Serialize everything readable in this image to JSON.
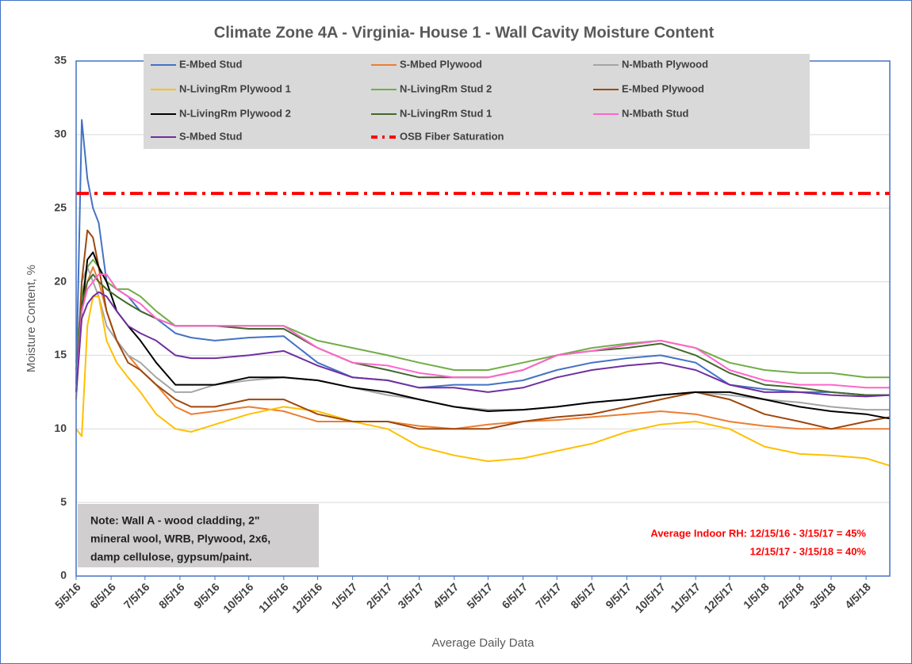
{
  "chart_data": {
    "type": "line",
    "title": "Climate Zone 4A - Virginia- House 1 - Wall Cavity Moisture Content",
    "x_label": "Average Daily Data",
    "y_label": "Moisture Content, %",
    "x": [
      "5/5/16",
      "5/10/16",
      "5/15/16",
      "5/20/16",
      "5/25/16",
      "6/1/16",
      "6/10/16",
      "6/20/16",
      "7/1/16",
      "7/15/16",
      "8/1/16",
      "8/15/16",
      "9/5/16",
      "10/5/16",
      "11/5/16",
      "12/5/16",
      "1/5/17",
      "2/5/17",
      "3/5/17",
      "4/5/17",
      "5/5/17",
      "6/5/17",
      "7/5/17",
      "8/5/17",
      "9/5/17",
      "10/5/17",
      "11/5/17",
      "12/5/17",
      "1/5/18",
      "2/5/18",
      "3/5/18",
      "4/5/18",
      "4/26/18"
    ],
    "xlim": [
      "5/5/16",
      "4/26/18"
    ],
    "xticks": [
      "5/5/16",
      "6/5/16",
      "7/5/16",
      "8/5/16",
      "9/5/16",
      "10/5/16",
      "11/5/16",
      "12/5/16",
      "1/5/17",
      "2/5/17",
      "3/5/17",
      "4/5/17",
      "5/5/17",
      "6/5/17",
      "7/5/17",
      "8/5/17",
      "9/5/17",
      "10/5/17",
      "11/5/17",
      "12/5/17",
      "1/5/18",
      "2/5/18",
      "3/5/18",
      "4/5/18"
    ],
    "ylim": [
      0,
      35
    ],
    "yticks": [
      0,
      5,
      10,
      15,
      20,
      25,
      30,
      35
    ],
    "grid": true,
    "series": [
      {
        "name": "E-Mbed Stud",
        "color": "#4472c4",
        "values": [
          13,
          31,
          27,
          25,
          24,
          20,
          19.5,
          19,
          18,
          17.5,
          16.5,
          16.2,
          16,
          16.2,
          16.3,
          14.5,
          13.5,
          13.3,
          12.8,
          13,
          13,
          13.3,
          14,
          14.5,
          14.8,
          15,
          14.5,
          13,
          12.7,
          12.5,
          12.5,
          12.3,
          12.3
        ]
      },
      {
        "name": "S-Mbed Plywood",
        "color": "#ed7d31",
        "values": [
          12,
          18,
          20,
          21,
          20,
          18,
          16,
          15,
          14,
          13,
          11.5,
          11,
          11.2,
          11.5,
          11.2,
          10.5,
          10.5,
          10.5,
          10.2,
          10,
          10.3,
          10.5,
          10.6,
          10.8,
          11,
          11.2,
          11,
          10.5,
          10.2,
          10,
          10,
          10,
          10
        ]
      },
      {
        "name": "N-Mbath Plywood",
        "color": "#a5a5a5",
        "values": [
          13,
          20,
          21,
          20,
          19,
          17,
          16,
          15,
          14.5,
          13.5,
          12.5,
          12.5,
          13,
          13.3,
          13.5,
          13.3,
          12.8,
          12.3,
          12,
          11.5,
          11.3,
          11.3,
          11.5,
          11.8,
          12,
          12.3,
          12.5,
          12.3,
          12,
          11.8,
          11.5,
          11.3,
          11.3
        ]
      },
      {
        "name": "N-LivingRm Plywood 1",
        "color": "#ffc000",
        "values": [
          10,
          9.5,
          17,
          19,
          19,
          16,
          14.5,
          13.5,
          12.5,
          11,
          10,
          9.8,
          10.3,
          11,
          11.5,
          11.2,
          10.5,
          10,
          8.8,
          8.2,
          7.8,
          8,
          8.5,
          9,
          9.8,
          10.3,
          10.5,
          10,
          8.8,
          8.3,
          8.2,
          8,
          7.5
        ]
      },
      {
        "name": "N-LivingRm Stud 2",
        "color": "#70ad47",
        "values": [
          14.5,
          19,
          21,
          21.5,
          21,
          20,
          19.5,
          19.5,
          19,
          18,
          17,
          17,
          17,
          17,
          17,
          16,
          15.5,
          15,
          14.5,
          14,
          14,
          14.5,
          15,
          15.5,
          15.8,
          16,
          15.5,
          14.5,
          14,
          13.8,
          13.8,
          13.5,
          13.5
        ]
      },
      {
        "name": "E-Mbed Plywood",
        "color": "#9e480e",
        "values": [
          12.5,
          20,
          23.5,
          23,
          21,
          18,
          16,
          14.5,
          14,
          13,
          12,
          11.5,
          11.5,
          12,
          12,
          11,
          10.5,
          10.5,
          10,
          10,
          10,
          10.5,
          10.8,
          11,
          11.5,
          12,
          12.5,
          12,
          11,
          10.5,
          10,
          10.5,
          10.8
        ]
      },
      {
        "name": "N-LivingRm Plywood 2",
        "color": "#000000",
        "values": [
          12.5,
          18,
          21.5,
          22,
          21,
          20,
          18,
          17,
          16,
          14.5,
          13,
          13,
          13,
          13.5,
          13.5,
          13.3,
          12.8,
          12.5,
          12,
          11.5,
          11.2,
          11.3,
          11.5,
          11.8,
          12,
          12.3,
          12.5,
          12.5,
          12,
          11.5,
          11.2,
          11,
          10.7
        ]
      },
      {
        "name": "N-LivingRm Stud 1",
        "color": "#43682b",
        "values": [
          14,
          18.5,
          20,
          20.5,
          20,
          19.5,
          19,
          18.5,
          18,
          17.5,
          17,
          17,
          17,
          16.8,
          16.8,
          15.5,
          14.5,
          14,
          13.5,
          13.5,
          13.5,
          14,
          15,
          15.3,
          15.5,
          15.8,
          15,
          13.8,
          13,
          12.8,
          12.5,
          12.3,
          12.3
        ]
      },
      {
        "name": "N-Mbath Stud",
        "color": "#ff66cc",
        "values": [
          13,
          18,
          19.5,
          20,
          20.5,
          20.5,
          19.5,
          19,
          18.5,
          17.5,
          17,
          17,
          17,
          17,
          17,
          15.5,
          14.5,
          14.3,
          13.8,
          13.5,
          13.5,
          14,
          15,
          15.3,
          15.7,
          16,
          15.5,
          14,
          13.3,
          13,
          13,
          12.8,
          12.8
        ]
      },
      {
        "name": "S-Mbed Stud",
        "color": "#7030a0",
        "values": [
          12.5,
          17.5,
          18.5,
          19,
          19.3,
          19,
          18,
          17,
          16.5,
          16,
          15,
          14.8,
          14.8,
          15,
          15.3,
          14.3,
          13.5,
          13.3,
          12.8,
          12.8,
          12.5,
          12.8,
          13.5,
          14,
          14.3,
          14.5,
          14,
          13,
          12.5,
          12.5,
          12.3,
          12.2,
          12.3
        ]
      }
    ],
    "reference_line": {
      "name": "OSB Fiber Saturation",
      "value": 26,
      "color": "#ff0000"
    },
    "note": [
      "Note: Wall A - wood cladding, 2\"",
      "mineral wool, WRB, Plywood, 2x6,",
      "damp cellulose, gypsum/paint."
    ],
    "rh_annotation": [
      "Average Indoor RH: 12/15/16 - 3/15/17 = 45%",
      "12/15/17 - 3/15/18 = 40%"
    ]
  }
}
